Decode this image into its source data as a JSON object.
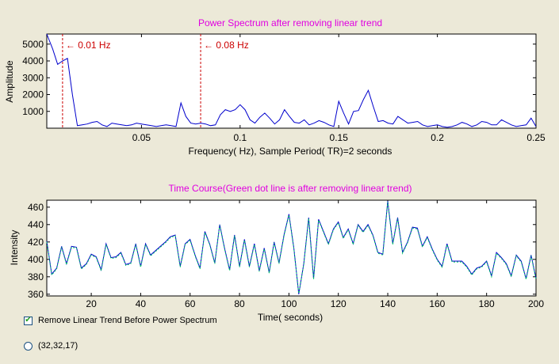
{
  "chart_data": [
    {
      "type": "line",
      "title": "Power Spectrum after removing linear trend",
      "xlabel": "Frequency( Hz), Sample Period( TR)=2 seconds",
      "ylabel": "Amplitude",
      "xlim": [
        0.002,
        0.25
      ],
      "ylim": [
        0,
        5600
      ],
      "xticks": [
        0.05,
        0.1,
        0.15,
        0.2,
        0.25
      ],
      "xtick_labels": [
        "0.05",
        "0.1",
        "0.15",
        "0.2",
        "0.25"
      ],
      "yticks": [
        1000,
        2000,
        3000,
        4000,
        5000
      ],
      "ytick_labels": [
        "1000",
        "2000",
        "3000",
        "4000",
        "5000"
      ],
      "grid": false,
      "colors": {
        "line": "#0000cc",
        "title": "#e000e0",
        "marker": "#cc0000"
      },
      "series": [
        {
          "x": [
            0.002,
            0.005,
            0.0075,
            0.01,
            0.0125,
            0.015,
            0.0175,
            0.02,
            0.0225,
            0.025,
            0.0275,
            0.03,
            0.0325,
            0.035,
            0.0375,
            0.04,
            0.0425,
            0.045,
            0.0475,
            0.05,
            0.0525,
            0.055,
            0.0575,
            0.06,
            0.0625,
            0.065,
            0.0675,
            0.07,
            0.0725,
            0.075,
            0.0775,
            0.08,
            0.0825,
            0.085,
            0.0875,
            0.09,
            0.0925,
            0.095,
            0.0975,
            0.1,
            0.1025,
            0.105,
            0.1075,
            0.11,
            0.1125,
            0.115,
            0.1175,
            0.12,
            0.1225,
            0.125,
            0.1275,
            0.13,
            0.1325,
            0.135,
            0.1375,
            0.14,
            0.1425,
            0.145,
            0.1475,
            0.15,
            0.1525,
            0.155,
            0.1575,
            0.16,
            0.1625,
            0.165,
            0.1675,
            0.17,
            0.1725,
            0.175,
            0.1775,
            0.18,
            0.1825,
            0.185,
            0.1875,
            0.19,
            0.1925,
            0.195,
            0.1975,
            0.2,
            0.2025,
            0.205,
            0.2075,
            0.21,
            0.2125,
            0.215,
            0.2175,
            0.22,
            0.2225,
            0.225,
            0.2275,
            0.23,
            0.2325,
            0.235,
            0.2375,
            0.24,
            0.2425,
            0.245,
            0.2475,
            0.25
          ],
          "y": [
            5600,
            4700,
            3800,
            4000,
            4150,
            2000,
            150,
            200,
            250,
            350,
            400,
            200,
            100,
            300,
            250,
            200,
            150,
            200,
            300,
            250,
            200,
            150,
            100,
            150,
            200,
            150,
            100,
            1500,
            700,
            300,
            250,
            300,
            250,
            150,
            200,
            800,
            1100,
            1000,
            1100,
            1400,
            1100,
            500,
            300,
            650,
            900,
            600,
            250,
            500,
            1100,
            700,
            350,
            300,
            500,
            200,
            300,
            450,
            350,
            200,
            100,
            1600,
            900,
            250,
            1000,
            1050,
            1700,
            2250,
            1300,
            400,
            450,
            300,
            250,
            700,
            500,
            300,
            350,
            400,
            200,
            100,
            150,
            200,
            100,
            50,
            100,
            200,
            350,
            250,
            100,
            200,
            400,
            350,
            200,
            200,
            500,
            350,
            200,
            100,
            150,
            200,
            600,
            100
          ]
        }
      ],
      "annotations": [
        "0.01 Hz",
        "0.08 Hz"
      ],
      "annotation_x": [
        0.01,
        0.08
      ]
    },
    {
      "type": "line",
      "title": "Time Course(Green dot line is after removing linear trend)",
      "xlabel": "Time( seconds)",
      "ylabel": "Intensity",
      "xlim": [
        2,
        200
      ],
      "ylim": [
        358,
        468
      ],
      "xticks": [
        20,
        40,
        60,
        80,
        100,
        120,
        140,
        160,
        180,
        200
      ],
      "xtick_labels": [
        "20",
        "40",
        "60",
        "80",
        "100",
        "120",
        "140",
        "160",
        "180",
        "200"
      ],
      "yticks": [
        360,
        380,
        400,
        420,
        440,
        460
      ],
      "ytick_labels": [
        "360",
        "380",
        "400",
        "420",
        "440",
        "460"
      ],
      "grid": false,
      "colors": {
        "raw": "#0000cc",
        "detrended": "#00cc66",
        "title": "#e000e0"
      },
      "series": [
        {
          "style": "solid",
          "x": [
            2,
            4,
            6,
            8,
            10,
            12,
            14,
            16,
            18,
            20,
            22,
            24,
            26,
            28,
            30,
            32,
            34,
            36,
            38,
            40,
            42,
            44,
            46,
            48,
            50,
            52,
            54,
            56,
            58,
            60,
            62,
            64,
            66,
            68,
            70,
            72,
            74,
            76,
            78,
            80,
            82,
            84,
            86,
            88,
            90,
            92,
            94,
            96,
            98,
            100,
            102,
            104,
            106,
            108,
            110,
            112,
            114,
            116,
            118,
            120,
            122,
            124,
            126,
            128,
            130,
            132,
            134,
            136,
            138,
            140,
            142,
            144,
            146,
            148,
            150,
            152,
            154,
            156,
            158,
            160,
            162,
            164,
            166,
            168,
            170,
            172,
            174,
            176,
            178,
            180,
            182,
            184,
            186,
            188,
            190,
            192,
            194,
            196,
            198,
            200
          ],
          "y": [
            421,
            383,
            390,
            415,
            395,
            415,
            414,
            390,
            395,
            406,
            403,
            388,
            418,
            402,
            403,
            408,
            394,
            396,
            418,
            392,
            418,
            405,
            410,
            415,
            420,
            426,
            428,
            392,
            418,
            423,
            405,
            390,
            432,
            417,
            396,
            440,
            412,
            388,
            428,
            392,
            423,
            392,
            418,
            387,
            413,
            385,
            420,
            396,
            428,
            452,
            413,
            360,
            395,
            448,
            378,
            446,
            432,
            418,
            435,
            443,
            425,
            435,
            418,
            440,
            432,
            440,
            428,
            408,
            406,
            467,
            418,
            448,
            408,
            420,
            437,
            436,
            415,
            426,
            412,
            400,
            392,
            418,
            398,
            398,
            398,
            392,
            383,
            390,
            392,
            398,
            381,
            408,
            402,
            395,
            381,
            405,
            398,
            378,
            405,
            378
          ]
        },
        {
          "style": "dotted",
          "x": [
            2,
            4,
            6,
            8,
            10,
            12,
            14,
            16,
            18,
            20,
            22,
            24,
            26,
            28,
            30,
            32,
            34,
            36,
            38,
            40,
            42,
            44,
            46,
            48,
            50,
            52,
            54,
            56,
            58,
            60,
            62,
            64,
            66,
            68,
            70,
            72,
            74,
            76,
            78,
            80,
            82,
            84,
            86,
            88,
            90,
            92,
            94,
            96,
            98,
            100,
            102,
            104,
            106,
            108,
            110,
            112,
            114,
            116,
            118,
            120,
            122,
            124,
            126,
            128,
            130,
            132,
            134,
            136,
            138,
            140,
            142,
            144,
            146,
            148,
            150,
            152,
            154,
            156,
            158,
            160,
            162,
            164,
            166,
            168,
            170,
            172,
            174,
            176,
            178,
            180,
            182,
            184,
            186,
            188,
            190,
            192,
            194,
            196,
            198,
            200
          ],
          "y": [
            420,
            382,
            389,
            414,
            394,
            414,
            413,
            389,
            394,
            405,
            402,
            387,
            417,
            401,
            402,
            407,
            393,
            395,
            417,
            391,
            417,
            404,
            409,
            414,
            419,
            425,
            427,
            391,
            417,
            422,
            404,
            389,
            431,
            416,
            395,
            439,
            411,
            387,
            427,
            391,
            422,
            391,
            417,
            386,
            412,
            384,
            419,
            395,
            427,
            451,
            412,
            361,
            394,
            447,
            377,
            445,
            431,
            417,
            434,
            442,
            424,
            434,
            417,
            439,
            431,
            439,
            427,
            407,
            405,
            466,
            417,
            447,
            407,
            419,
            436,
            435,
            414,
            425,
            411,
            399,
            391,
            417,
            397,
            397,
            397,
            391,
            382,
            389,
            391,
            397,
            380,
            407,
            401,
            394,
            380,
            404,
            397,
            377,
            404,
            377
          ]
        }
      ]
    }
  ],
  "controls": {
    "remove_trend_label": "Remove Linear Trend Before Power Spectrum",
    "remove_trend_checked": true,
    "voxel_label": "(32,32,17)"
  }
}
